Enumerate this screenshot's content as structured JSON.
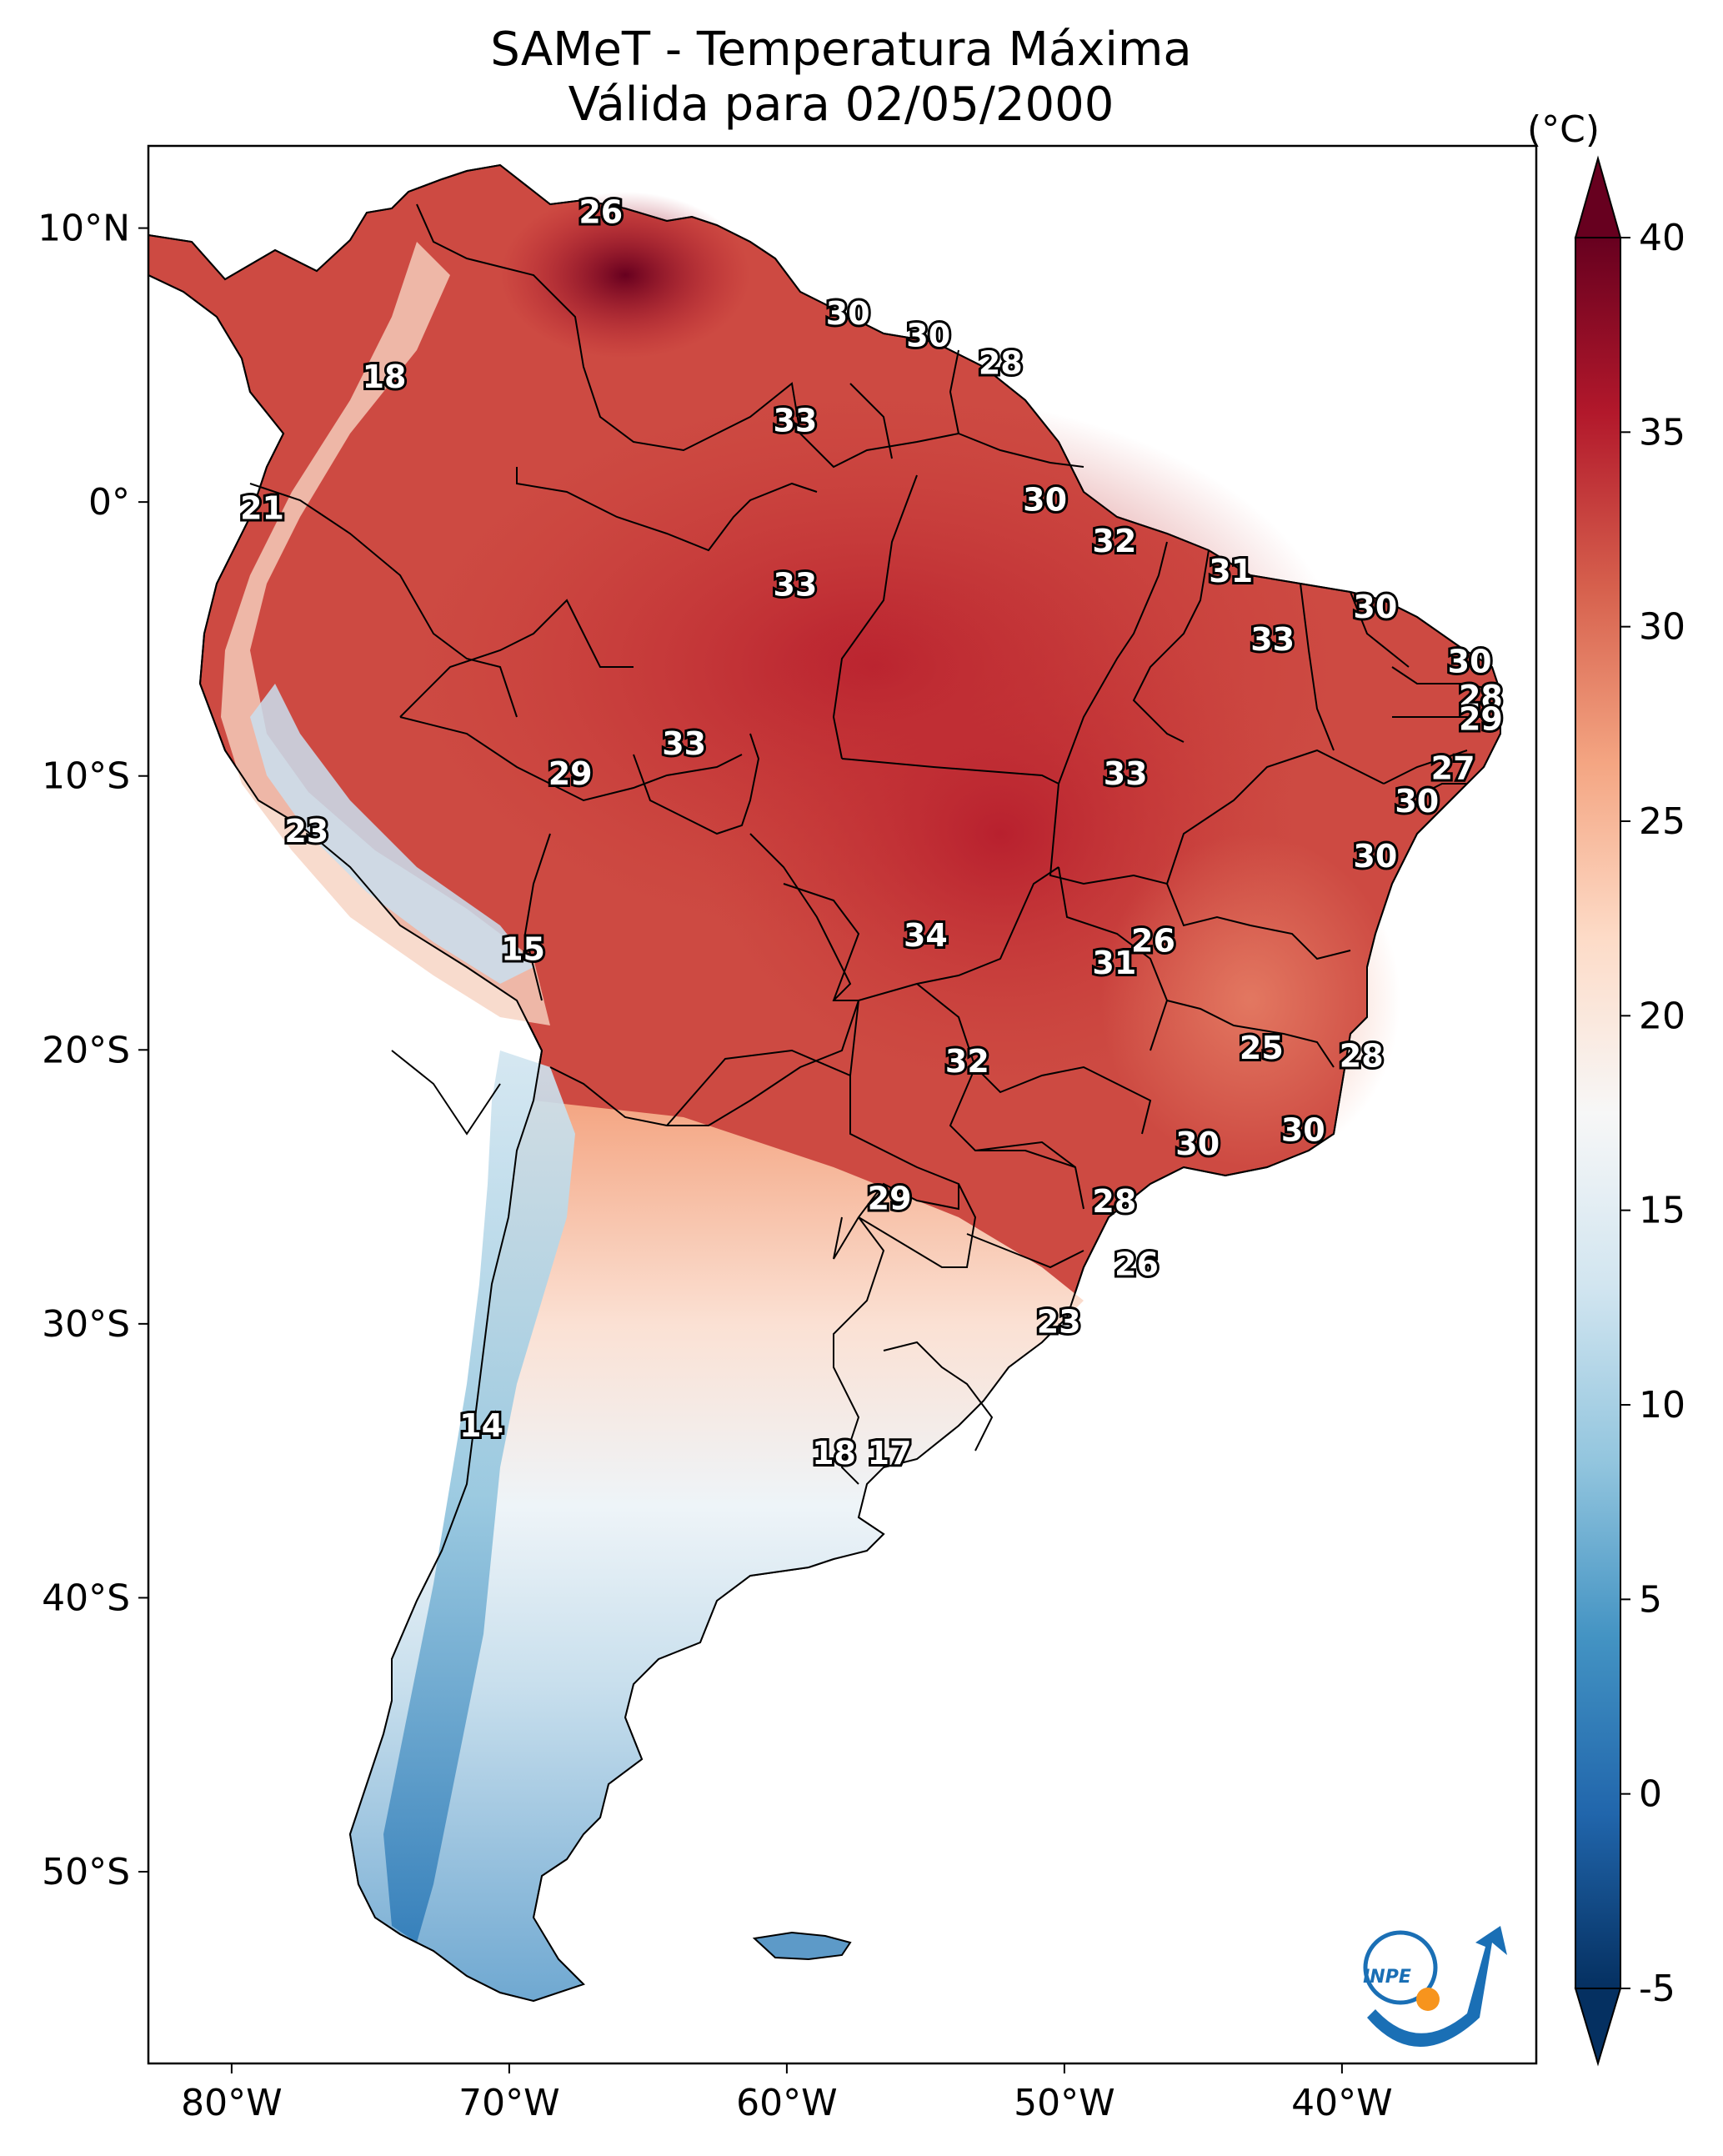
{
  "title": {
    "line1": "SAMeT - Temperatura Máxima",
    "line2": "Válida para 02/05/2000"
  },
  "map": {
    "region": "South America",
    "variable": "maximum temperature",
    "lon_range": [
      -83,
      -33
    ],
    "lat_range": [
      -57,
      13
    ],
    "lon_ticks": [
      "80°W",
      "70°W",
      "60°W",
      "50°W",
      "40°W"
    ],
    "lat_ticks": [
      "10°N",
      "0°",
      "10°S",
      "20°S",
      "30°S",
      "40°S",
      "50°S"
    ],
    "point_labels": [
      {
        "text": "26",
        "lon": -66.7,
        "lat": 10.5
      },
      {
        "text": "30",
        "lon": -57.8,
        "lat": 6.8
      },
      {
        "text": "30",
        "lon": -54.9,
        "lat": 6.0
      },
      {
        "text": "28",
        "lon": -52.3,
        "lat": 5.0
      },
      {
        "text": "18",
        "lon": -74.5,
        "lat": 4.5
      },
      {
        "text": "33",
        "lon": -59.7,
        "lat": 2.9
      },
      {
        "text": "21",
        "lon": -78.9,
        "lat": -0.3
      },
      {
        "text": "30",
        "lon": -50.7,
        "lat": 0.0
      },
      {
        "text": "32",
        "lon": -48.2,
        "lat": -1.5
      },
      {
        "text": "31",
        "lon": -44.0,
        "lat": -2.6
      },
      {
        "text": "33",
        "lon": -59.7,
        "lat": -3.1
      },
      {
        "text": "30",
        "lon": -38.8,
        "lat": -3.9
      },
      {
        "text": "33",
        "lon": -42.5,
        "lat": -5.1
      },
      {
        "text": "30",
        "lon": -35.4,
        "lat": -5.9
      },
      {
        "text": "28",
        "lon": -35.0,
        "lat": -7.2
      },
      {
        "text": "29",
        "lon": -35.0,
        "lat": -8.0
      },
      {
        "text": "33",
        "lon": -63.7,
        "lat": -8.9
      },
      {
        "text": "27",
        "lon": -36.0,
        "lat": -9.8
      },
      {
        "text": "29",
        "lon": -67.8,
        "lat": -10.0
      },
      {
        "text": "33",
        "lon": -47.8,
        "lat": -10.0
      },
      {
        "text": "30",
        "lon": -37.3,
        "lat": -11.0
      },
      {
        "text": "23",
        "lon": -77.3,
        "lat": -12.1
      },
      {
        "text": "30",
        "lon": -38.8,
        "lat": -13.0
      },
      {
        "text": "34",
        "lon": -55.0,
        "lat": -15.9
      },
      {
        "text": "26",
        "lon": -46.8,
        "lat": -16.1
      },
      {
        "text": "15",
        "lon": -69.5,
        "lat": -16.4
      },
      {
        "text": "31",
        "lon": -48.2,
        "lat": -16.9
      },
      {
        "text": "25",
        "lon": -42.9,
        "lat": -20.0
      },
      {
        "text": "28",
        "lon": -39.3,
        "lat": -20.3
      },
      {
        "text": "32",
        "lon": -53.5,
        "lat": -20.5
      },
      {
        "text": "30",
        "lon": -41.4,
        "lat": -23.0
      },
      {
        "text": "30",
        "lon": -45.2,
        "lat": -23.5
      },
      {
        "text": "29",
        "lon": -56.3,
        "lat": -25.5
      },
      {
        "text": "28",
        "lon": -48.2,
        "lat": -25.6
      },
      {
        "text": "26",
        "lon": -47.4,
        "lat": -27.9
      },
      {
        "text": "23",
        "lon": -50.2,
        "lat": -30.0
      },
      {
        "text": "14",
        "lon": -71.0,
        "lat": -33.8
      },
      {
        "text": "18",
        "lon": -58.3,
        "lat": -34.8
      },
      {
        "text": "17",
        "lon": -56.3,
        "lat": -34.8
      }
    ]
  },
  "colorbar": {
    "unit": "(°C)",
    "min": -5,
    "max": 40,
    "tick_values": [
      40,
      35,
      30,
      25,
      20,
      15,
      10,
      5,
      0,
      -5
    ],
    "tick_labels": [
      "40",
      "35",
      "30",
      "25",
      "20",
      "15",
      "10",
      "5",
      "0",
      "-5"
    ],
    "colormap": "RdBu_r",
    "colors": [
      "#053061",
      "#2166ac",
      "#4393c3",
      "#92c5de",
      "#d1e5f0",
      "#f7f7f7",
      "#fddbc7",
      "#f4a582",
      "#d6604d",
      "#b2182b",
      "#67001f"
    ]
  },
  "logo": {
    "text": "INPE",
    "colors": [
      "#1a6fb5",
      "#f7941d"
    ]
  }
}
